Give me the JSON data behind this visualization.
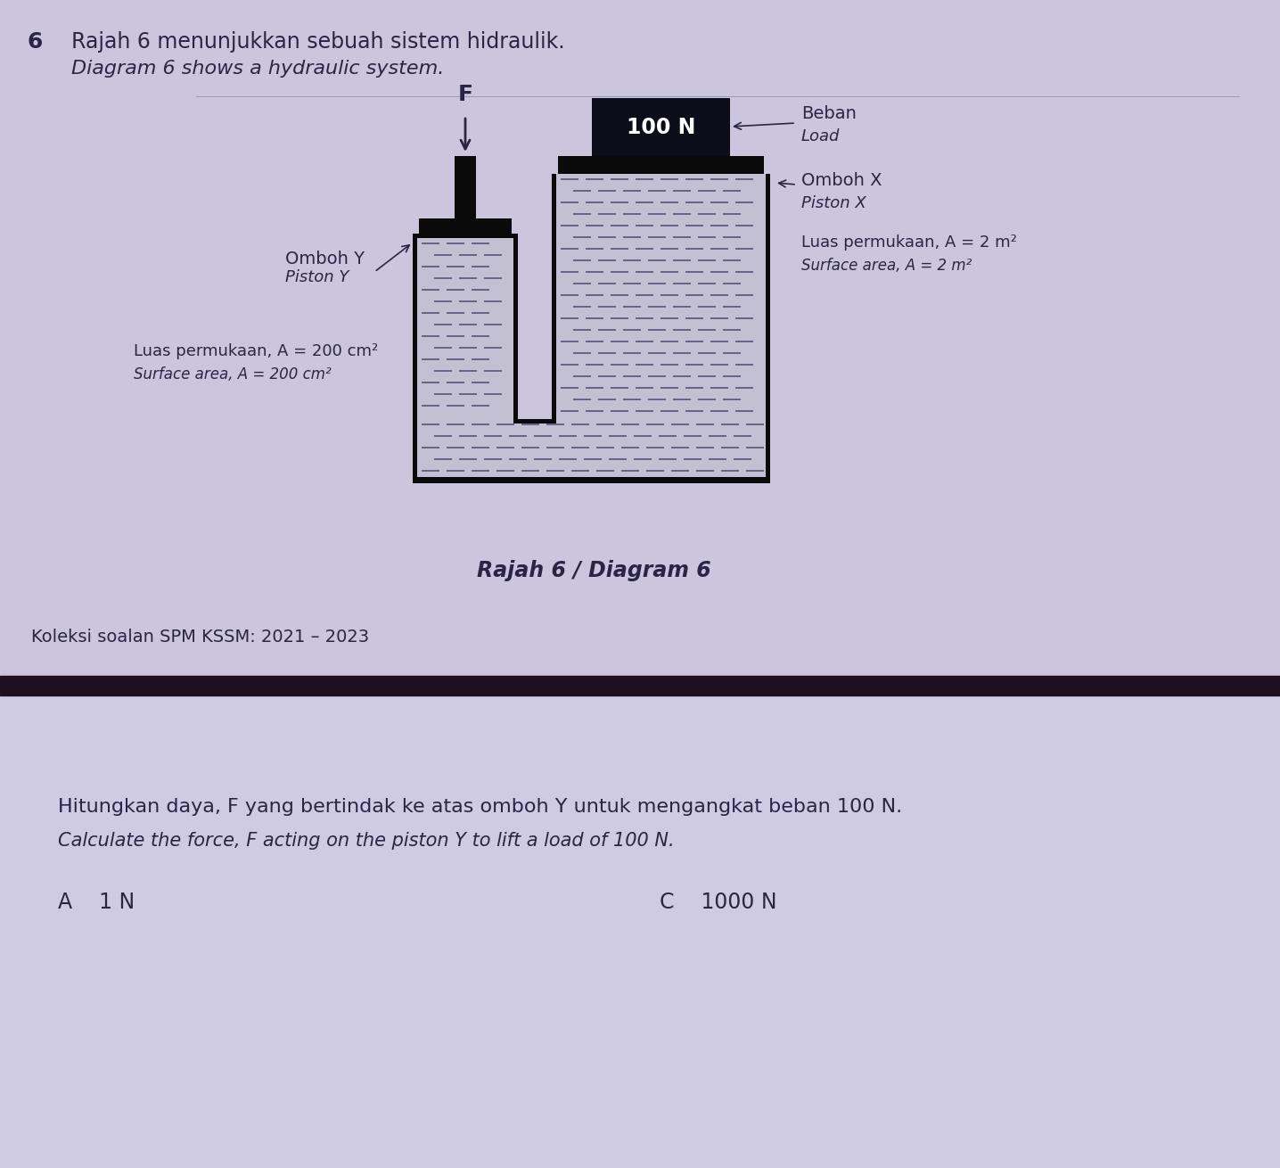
{
  "bg_color": "#cdc8e0",
  "bg_color2": "#d4cfea",
  "dark_bar_color": "#1a0f1e",
  "text_color": "#2a2545",
  "number6": "6",
  "title_line1": "Rajah 6 menunjukkan sebuah sistem hidraulik.",
  "title_line2": "Diagram 6 shows a hydraulic system.",
  "caption": "Rajah 6 / Diagram 6",
  "label_omboh_y_1": "Omboh Y",
  "label_omboh_y_2": "Piston Y",
  "label_area_y_1": "Luas permukaan, A = 200 cm²",
  "label_area_y_2": "Surface area, A = 200 cm²",
  "label_omboh_x_1": "Omboh X",
  "label_omboh_x_2": "Piston X",
  "label_area_x_1": "Luas permukaan, A = 2 m²",
  "label_area_x_2": "Surface area, A = 2 m²",
  "label_beban_1": "Beban",
  "label_beban_2": "Load",
  "label_100N": "100 N",
  "label_F": "F",
  "footer_text": "Koleksi soalan SPM KSSM: 2021 – 2023",
  "question_line1": "Hitungkan daya, F yang bertindak ke atas omboh Y untuk mengangkat beban 100 N.",
  "question_line2": "Calculate the force, F acting on the piston Y to lift a load of 100 N.",
  "answer_A": "A    1 N",
  "answer_C": "C    1000 N"
}
